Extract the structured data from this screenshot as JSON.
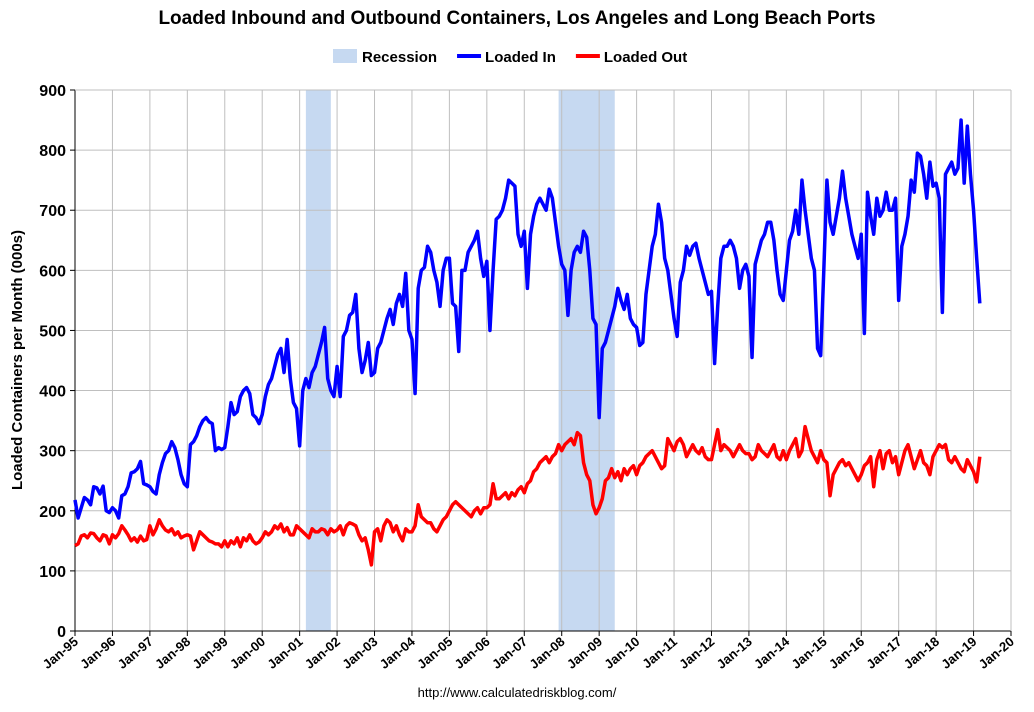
{
  "chart_data": {
    "type": "line",
    "title": "Loaded Inbound and Outbound Containers, Los Angeles and Long Beach Ports",
    "y_label": "Loaded Containers per Month (000s)",
    "source": "http://www.calculatedriskblog.com/",
    "recession_label": "Recession",
    "recession_color": "#c6d9f1",
    "recessions": [
      {
        "start": "2001-03",
        "end": "2001-11"
      },
      {
        "start": "2007-12",
        "end": "2009-06"
      }
    ],
    "grid": true,
    "legend": "top",
    "ylim": [
      0,
      900
    ],
    "yticks": [
      0,
      100,
      200,
      300,
      400,
      500,
      600,
      700,
      800,
      900
    ],
    "xlim": [
      "1995-01",
      "2020-01"
    ],
    "xticks": [
      {
        "value": "1995-01",
        "label": "Jan-95"
      },
      {
        "value": "1996-01",
        "label": "Jan-96"
      },
      {
        "value": "1997-01",
        "label": "Jan-97"
      },
      {
        "value": "1998-01",
        "label": "Jan-98"
      },
      {
        "value": "1999-01",
        "label": "Jan-99"
      },
      {
        "value": "2000-01",
        "label": "Jan-00"
      },
      {
        "value": "2001-01",
        "label": "Jan-01"
      },
      {
        "value": "2002-01",
        "label": "Jan-02"
      },
      {
        "value": "2003-01",
        "label": "Jan-03"
      },
      {
        "value": "2004-01",
        "label": "Jan-04"
      },
      {
        "value": "2005-01",
        "label": "Jan-05"
      },
      {
        "value": "2006-01",
        "label": "Jan-06"
      },
      {
        "value": "2007-01",
        "label": "Jan-07"
      },
      {
        "value": "2008-01",
        "label": "Jan-08"
      },
      {
        "value": "2009-01",
        "label": "Jan-09"
      },
      {
        "value": "2010-01",
        "label": "Jan-10"
      },
      {
        "value": "2011-01",
        "label": "Jan-11"
      },
      {
        "value": "2012-01",
        "label": "Jan-12"
      },
      {
        "value": "2013-01",
        "label": "Jan-13"
      },
      {
        "value": "2014-01",
        "label": "Jan-14"
      },
      {
        "value": "2015-01",
        "label": "Jan-15"
      },
      {
        "value": "2016-01",
        "label": "Jan-16"
      },
      {
        "value": "2017-01",
        "label": "Jan-17"
      },
      {
        "value": "2018-01",
        "label": "Jan-18"
      },
      {
        "value": "2019-01",
        "label": "Jan-19"
      },
      {
        "value": "2020-01",
        "label": "Jan-20"
      }
    ],
    "x": [
      "1995-01",
      "1995-02",
      "1995-03",
      "1995-04",
      "1995-05",
      "1995-06",
      "1995-07",
      "1995-08",
      "1995-09",
      "1995-10",
      "1995-11",
      "1995-12",
      "1996-01",
      "1996-02",
      "1996-03",
      "1996-04",
      "1996-05",
      "1996-06",
      "1996-07",
      "1996-08",
      "1996-09",
      "1996-10",
      "1996-11",
      "1996-12",
      "1997-01",
      "1997-02",
      "1997-03",
      "1997-04",
      "1997-05",
      "1997-06",
      "1997-07",
      "1997-08",
      "1997-09",
      "1997-10",
      "1997-11",
      "1997-12",
      "1998-01",
      "1998-02",
      "1998-03",
      "1998-04",
      "1998-05",
      "1998-06",
      "1998-07",
      "1998-08",
      "1998-09",
      "1998-10",
      "1998-11",
      "1998-12",
      "1999-01",
      "1999-02",
      "1999-03",
      "1999-04",
      "1999-05",
      "1999-06",
      "1999-07",
      "1999-08",
      "1999-09",
      "1999-10",
      "1999-11",
      "1999-12",
      "2000-01",
      "2000-02",
      "2000-03",
      "2000-04",
      "2000-05",
      "2000-06",
      "2000-07",
      "2000-08",
      "2000-09",
      "2000-10",
      "2000-11",
      "2000-12",
      "2001-01",
      "2001-02",
      "2001-03",
      "2001-04",
      "2001-05",
      "2001-06",
      "2001-07",
      "2001-08",
      "2001-09",
      "2001-10",
      "2001-11",
      "2001-12",
      "2002-01",
      "2002-02",
      "2002-03",
      "2002-04",
      "2002-05",
      "2002-06",
      "2002-07",
      "2002-08",
      "2002-09",
      "2002-10",
      "2002-11",
      "2002-12",
      "2003-01",
      "2003-02",
      "2003-03",
      "2003-04",
      "2003-05",
      "2003-06",
      "2003-07",
      "2003-08",
      "2003-09",
      "2003-10",
      "2003-11",
      "2003-12",
      "2004-01",
      "2004-02",
      "2004-03",
      "2004-04",
      "2004-05",
      "2004-06",
      "2004-07",
      "2004-08",
      "2004-09",
      "2004-10",
      "2004-11",
      "2004-12",
      "2005-01",
      "2005-02",
      "2005-03",
      "2005-04",
      "2005-05",
      "2005-06",
      "2005-07",
      "2005-08",
      "2005-09",
      "2005-10",
      "2005-11",
      "2005-12",
      "2006-01",
      "2006-02",
      "2006-03",
      "2006-04",
      "2006-05",
      "2006-06",
      "2006-07",
      "2006-08",
      "2006-09",
      "2006-10",
      "2006-11",
      "2006-12",
      "2007-01",
      "2007-02",
      "2007-03",
      "2007-04",
      "2007-05",
      "2007-06",
      "2007-07",
      "2007-08",
      "2007-09",
      "2007-10",
      "2007-11",
      "2007-12",
      "2008-01",
      "2008-02",
      "2008-03",
      "2008-04",
      "2008-05",
      "2008-06",
      "2008-07",
      "2008-08",
      "2008-09",
      "2008-10",
      "2008-11",
      "2008-12",
      "2009-01",
      "2009-02",
      "2009-03",
      "2009-04",
      "2009-05",
      "2009-06",
      "2009-07",
      "2009-08",
      "2009-09",
      "2009-10",
      "2009-11",
      "2009-12",
      "2010-01",
      "2010-02",
      "2010-03",
      "2010-04",
      "2010-05",
      "2010-06",
      "2010-07",
      "2010-08",
      "2010-09",
      "2010-10",
      "2010-11",
      "2010-12",
      "2011-01",
      "2011-02",
      "2011-03",
      "2011-04",
      "2011-05",
      "2011-06",
      "2011-07",
      "2011-08",
      "2011-09",
      "2011-10",
      "2011-11",
      "2011-12",
      "2012-01",
      "2012-02",
      "2012-03",
      "2012-04",
      "2012-05",
      "2012-06",
      "2012-07",
      "2012-08",
      "2012-09",
      "2012-10",
      "2012-11",
      "2012-12",
      "2013-01",
      "2013-02",
      "2013-03",
      "2013-04",
      "2013-05",
      "2013-06",
      "2013-07",
      "2013-08",
      "2013-09",
      "2013-10",
      "2013-11",
      "2013-12",
      "2014-01",
      "2014-02",
      "2014-03",
      "2014-04",
      "2014-05",
      "2014-06",
      "2014-07",
      "2014-08",
      "2014-09",
      "2014-10",
      "2014-11",
      "2014-12",
      "2015-01",
      "2015-02",
      "2015-03",
      "2015-04",
      "2015-05",
      "2015-06",
      "2015-07",
      "2015-08",
      "2015-09",
      "2015-10",
      "2015-11",
      "2015-12",
      "2016-01",
      "2016-02",
      "2016-03",
      "2016-04",
      "2016-05",
      "2016-06",
      "2016-07",
      "2016-08",
      "2016-09",
      "2016-10",
      "2016-11",
      "2016-12",
      "2017-01",
      "2017-02",
      "2017-03",
      "2017-04",
      "2017-05",
      "2017-06",
      "2017-07",
      "2017-08",
      "2017-09",
      "2017-10",
      "2017-11",
      "2017-12",
      "2018-01",
      "2018-02",
      "2018-03",
      "2018-04",
      "2018-05",
      "2018-06",
      "2018-07",
      "2018-08",
      "2018-09",
      "2018-10",
      "2018-11",
      "2018-12",
      "2019-01",
      "2019-02",
      "2019-03"
    ],
    "series": [
      {
        "name": "Loaded In",
        "color": "#0000ff",
        "values": [
          218,
          188,
          205,
          222,
          218,
          210,
          240,
          238,
          228,
          241,
          200,
          197,
          205,
          200,
          188,
          225,
          228,
          240,
          263,
          265,
          270,
          282,
          245,
          243,
          240,
          232,
          228,
          260,
          280,
          295,
          300,
          315,
          305,
          285,
          260,
          245,
          240,
          310,
          315,
          325,
          340,
          350,
          355,
          348,
          345,
          300,
          305,
          302,
          305,
          340,
          380,
          360,
          365,
          390,
          400,
          405,
          395,
          360,
          355,
          345,
          360,
          390,
          410,
          420,
          440,
          460,
          470,
          430,
          485,
          420,
          380,
          370,
          308,
          400,
          420,
          405,
          430,
          440,
          460,
          480,
          505,
          420,
          400,
          390,
          440,
          390,
          490,
          500,
          525,
          530,
          560,
          470,
          430,
          450,
          480,
          425,
          430,
          470,
          480,
          500,
          520,
          535,
          510,
          545,
          560,
          540,
          595,
          500,
          485,
          395,
          570,
          600,
          605,
          640,
          630,
          600,
          580,
          540,
          600,
          620,
          620,
          545,
          540,
          465,
          600,
          600,
          630,
          640,
          650,
          665,
          620,
          590,
          615,
          500,
          600,
          685,
          690,
          700,
          720,
          750,
          745,
          740,
          660,
          640,
          665,
          570,
          660,
          690,
          710,
          720,
          710,
          700,
          735,
          720,
          680,
          640,
          610,
          600,
          525,
          600,
          630,
          640,
          630,
          665,
          655,
          600,
          520,
          510,
          355,
          470,
          480,
          500,
          520,
          540,
          570,
          550,
          535,
          560,
          520,
          510,
          505,
          475,
          480,
          560,
          600,
          640,
          660,
          710,
          680,
          620,
          600,
          560,
          520,
          490,
          580,
          600,
          640,
          625,
          640,
          645,
          620,
          600,
          580,
          560,
          565,
          445,
          540,
          620,
          640,
          640,
          650,
          640,
          620,
          570,
          600,
          610,
          590,
          455,
          610,
          630,
          650,
          660,
          680,
          680,
          650,
          600,
          560,
          550,
          600,
          650,
          665,
          700,
          660,
          750,
          700,
          660,
          620,
          600,
          470,
          458,
          600,
          750,
          680,
          660,
          690,
          720,
          765,
          720,
          690,
          660,
          640,
          620,
          660,
          495,
          730,
          690,
          660,
          720,
          690,
          700,
          730,
          700,
          700,
          720,
          550,
          640,
          660,
          690,
          750,
          730,
          795,
          790,
          760,
          720,
          780,
          740,
          745,
          720,
          530,
          760,
          770,
          780,
          760,
          770,
          850,
          745,
          840,
          760,
          700,
          620,
          545
        ]
      },
      {
        "name": "Loaded Out",
        "color": "#ff0000",
        "values": [
          142,
          145,
          158,
          160,
          155,
          163,
          162,
          155,
          150,
          160,
          158,
          145,
          160,
          155,
          162,
          175,
          168,
          160,
          150,
          155,
          148,
          158,
          150,
          152,
          175,
          160,
          170,
          185,
          175,
          168,
          165,
          170,
          160,
          165,
          155,
          158,
          160,
          158,
          135,
          150,
          165,
          160,
          155,
          150,
          148,
          145,
          145,
          140,
          150,
          140,
          150,
          145,
          155,
          140,
          155,
          150,
          160,
          150,
          145,
          148,
          155,
          165,
          160,
          165,
          175,
          170,
          178,
          165,
          172,
          160,
          160,
          175,
          170,
          165,
          160,
          155,
          170,
          165,
          165,
          170,
          168,
          160,
          170,
          165,
          168,
          175,
          160,
          175,
          180,
          178,
          175,
          160,
          150,
          155,
          135,
          110,
          165,
          170,
          150,
          175,
          185,
          180,
          165,
          175,
          160,
          150,
          170,
          165,
          165,
          175,
          210,
          190,
          185,
          180,
          180,
          170,
          165,
          175,
          185,
          190,
          200,
          210,
          215,
          210,
          205,
          200,
          195,
          190,
          200,
          205,
          195,
          205,
          205,
          210,
          245,
          220,
          220,
          225,
          230,
          220,
          230,
          225,
          235,
          240,
          230,
          245,
          250,
          265,
          270,
          280,
          285,
          290,
          280,
          290,
          295,
          310,
          300,
          310,
          315,
          320,
          310,
          330,
          325,
          280,
          260,
          250,
          210,
          195,
          205,
          220,
          250,
          255,
          270,
          255,
          265,
          250,
          270,
          260,
          270,
          275,
          260,
          275,
          280,
          290,
          295,
          300,
          290,
          280,
          270,
          275,
          320,
          310,
          300,
          315,
          320,
          310,
          290,
          300,
          310,
          300,
          295,
          305,
          290,
          285,
          285,
          310,
          335,
          300,
          310,
          305,
          300,
          290,
          300,
          310,
          300,
          295,
          295,
          285,
          290,
          310,
          300,
          295,
          290,
          300,
          310,
          290,
          285,
          300,
          285,
          300,
          310,
          320,
          290,
          300,
          340,
          320,
          300,
          290,
          280,
          300,
          285,
          280,
          225,
          260,
          270,
          280,
          285,
          275,
          280,
          270,
          260,
          250,
          260,
          275,
          280,
          290,
          240,
          285,
          300,
          270,
          295,
          300,
          280,
          290,
          260,
          280,
          300,
          310,
          290,
          270,
          285,
          300,
          280,
          275,
          260,
          290,
          300,
          310,
          305,
          310,
          285,
          280,
          290,
          280,
          270,
          265,
          285,
          275,
          265,
          248,
          290
        ]
      }
    ]
  }
}
